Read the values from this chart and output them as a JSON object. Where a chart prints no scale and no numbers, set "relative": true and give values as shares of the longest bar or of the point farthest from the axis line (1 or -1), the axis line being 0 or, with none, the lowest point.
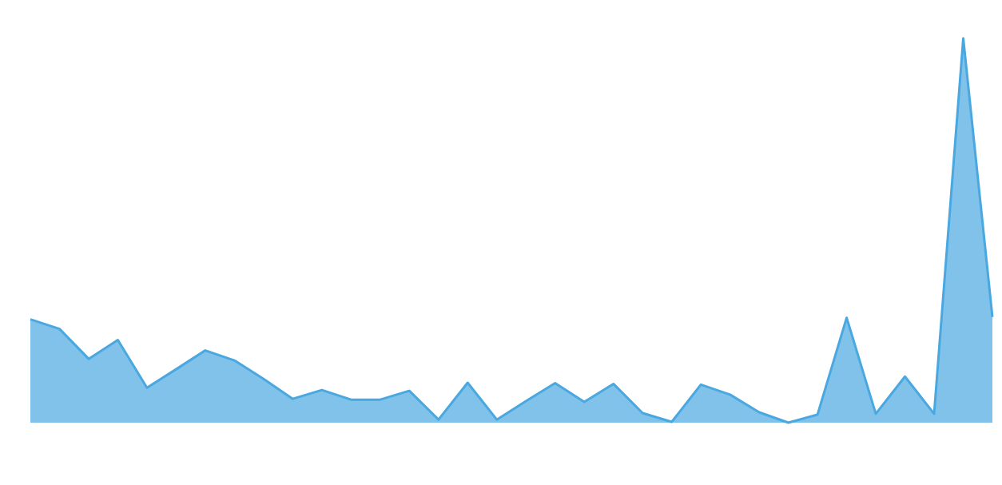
{
  "chart_data": {
    "type": "area",
    "relative": true,
    "categories": [
      null,
      null,
      null,
      null,
      null,
      null,
      null,
      null,
      null,
      null,
      null,
      null,
      null,
      null,
      null,
      null,
      null,
      null,
      null,
      null,
      null,
      null,
      null,
      null,
      null,
      null,
      null,
      null,
      null,
      null,
      null,
      null,
      null,
      null
    ],
    "series": [
      {
        "color": "#4aa8e0",
        "values": [
          0.269,
          0.244,
          0.166,
          0.215,
          0.091,
          0.139,
          0.188,
          0.162,
          0.114,
          0.062,
          0.085,
          0.06,
          0.06,
          0.083,
          0.008,
          0.104,
          0.008,
          0.056,
          0.103,
          0.054,
          0.101,
          0.025,
          0.002,
          0.099,
          0.073,
          0.027,
          0,
          0.021,
          0.273,
          0.023,
          0.12,
          0.023,
          1,
          0.275
        ]
      }
    ]
  }
}
